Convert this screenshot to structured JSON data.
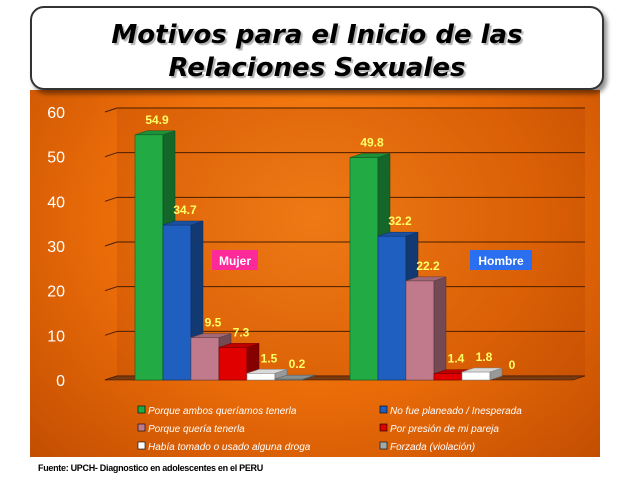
{
  "title": {
    "line1": "Motivos para el Inicio de las",
    "line2": "Relaciones  Sexuales"
  },
  "source": "Fuente: UPCH- Diagnostico en adolescentes  en el  PERU",
  "chart_data": {
    "type": "bar",
    "style": "3d-clustered",
    "categories": [
      "Mujer",
      "Hombre"
    ],
    "ylim": [
      0,
      60
    ],
    "yticks": [
      0,
      10,
      20,
      30,
      40,
      50,
      60
    ],
    "grid": true,
    "legend_position": "bottom",
    "annotations": [
      {
        "text": "Mujer",
        "color": "#ff2a9a"
      },
      {
        "text": "Hombre",
        "color": "#2a6ff0"
      }
    ],
    "series": [
      {
        "name": "Porque ambos queríamos tenerla",
        "values": [
          54.9,
          49.8
        ],
        "labels": [
          "54.9",
          "49.8"
        ],
        "color": "#22aa44"
      },
      {
        "name": "No fue planeado / Inesperada",
        "values": [
          34.7,
          32.2
        ],
        "labels": [
          "34.7",
          "32.2"
        ],
        "color": "#1f5fc0"
      },
      {
        "name": "Porque quería tenerla",
        "values": [
          9.5,
          22.2
        ],
        "labels": [
          "9.5",
          "22.2"
        ],
        "color": "#c07a8c"
      },
      {
        "name": "Por presión de mi pareja",
        "values": [
          7.3,
          1.4
        ],
        "labels": [
          "7.3",
          "1.4"
        ],
        "color": "#e00000"
      },
      {
        "name": "Había tomado o usado alguna droga",
        "values": [
          1.5,
          1.8
        ],
        "labels": [
          "1.5",
          "1.8"
        ],
        "color": "#ffffff"
      },
      {
        "name": "Forzada (violación)",
        "values": [
          0.2,
          0
        ],
        "labels": [
          "0.2",
          "0"
        ],
        "color": "#a0a8a8"
      }
    ]
  }
}
